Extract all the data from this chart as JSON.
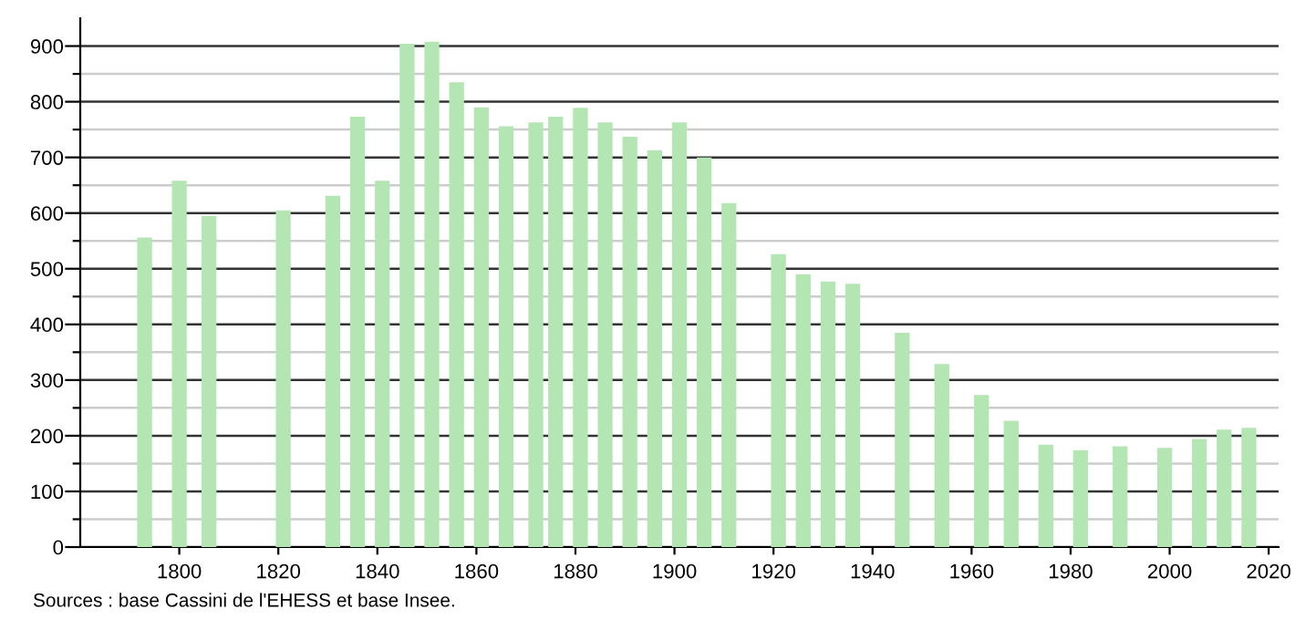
{
  "chart_data": {
    "type": "bar",
    "x": [
      1793,
      1800,
      1806,
      1821,
      1831,
      1836,
      1841,
      1846,
      1851,
      1856,
      1861,
      1866,
      1872,
      1876,
      1881,
      1886,
      1891,
      1896,
      1901,
      1906,
      1911,
      1921,
      1926,
      1931,
      1936,
      1946,
      1954,
      1962,
      1968,
      1975,
      1982,
      1990,
      1999,
      2006,
      2011,
      2016
    ],
    "values": [
      556,
      658,
      595,
      605,
      631,
      773,
      658,
      904,
      908,
      835,
      790,
      756,
      763,
      773,
      789,
      763,
      737,
      713,
      763,
      700,
      618,
      526,
      490,
      477,
      473,
      385,
      329,
      273,
      227,
      184,
      174,
      181,
      178,
      194,
      211,
      214
    ],
    "color": "#b3e6b3",
    "xlim": [
      1780,
      2022
    ],
    "xticks": [
      1800,
      1820,
      1840,
      1860,
      1880,
      1900,
      1920,
      1940,
      1960,
      1980,
      2000,
      2020
    ],
    "ylim": [
      0,
      950
    ],
    "yticks": [
      0,
      {
        "value": 50,
        "label": null
      },
      100,
      {
        "value": 150,
        "label": null
      },
      200,
      {
        "value": 250,
        "label": null
      },
      300,
      {
        "value": 350,
        "label": null
      },
      400,
      {
        "value": 450,
        "label": null
      },
      500,
      {
        "value": 550,
        "label": null
      },
      600,
      {
        "value": 650,
        "label": null
      },
      700,
      {
        "value": 750,
        "label": null
      },
      800,
      {
        "value": 850,
        "label": null
      },
      900
    ],
    "grid": "y",
    "annotations": [
      "Sources : base Cassini de l'EHESS et base Insee."
    ]
  }
}
